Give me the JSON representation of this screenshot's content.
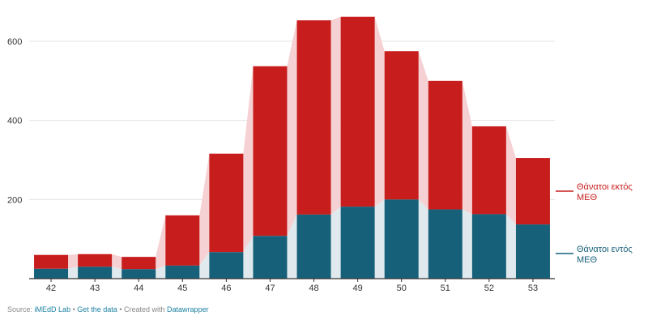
{
  "chart_data": {
    "type": "bar",
    "stacked": true,
    "categories": [
      "42",
      "43",
      "44",
      "45",
      "46",
      "47",
      "48",
      "49",
      "50",
      "51",
      "52",
      "53"
    ],
    "series": [
      {
        "name": "Θάνατοι εντός ΜΕΘ",
        "color": "#17607a",
        "values": [
          25,
          30,
          24,
          33,
          67,
          108,
          162,
          182,
          200,
          175,
          163,
          137
        ]
      },
      {
        "name": "Θάνατοι εκτός ΜΕΘ",
        "color": "#c71e1d",
        "values": [
          35,
          32,
          31,
          127,
          249,
          429,
          491,
          480,
          375,
          325,
          222,
          168
        ]
      }
    ],
    "legend": [
      {
        "line1": "Θάνατοι εκτός",
        "line2": "ΜΕΘ",
        "color": "#c71e1d"
      },
      {
        "line1": "Θάνατοι εντός",
        "line2": "ΜΕΘ",
        "color": "#17607a"
      }
    ],
    "legend_position": "right",
    "ylim": [
      0,
      700
    ],
    "yticks": [
      "200",
      "400",
      "600"
    ],
    "ytick_values": [
      200,
      400,
      600
    ],
    "grid": true,
    "area_band_color": "#f6d1d3",
    "title": "",
    "xlabel": "",
    "ylabel": ""
  },
  "footer": {
    "source_label": "Source:",
    "source_name": "iMEdD Lab",
    "sep1": "•",
    "get_data": "Get the data",
    "sep2": "•",
    "created_with": "Created with",
    "tool": "Datawrapper"
  }
}
